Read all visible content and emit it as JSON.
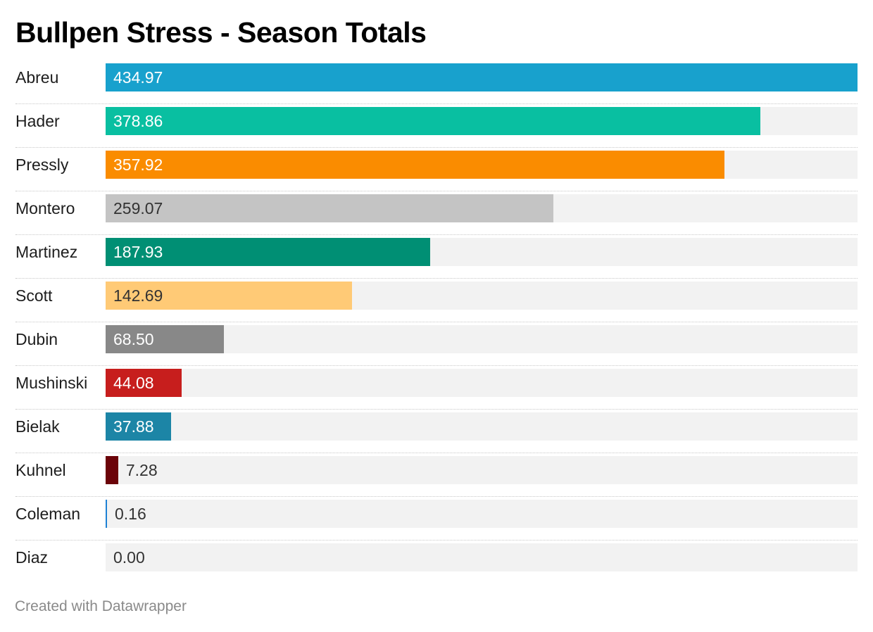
{
  "chart_data": {
    "type": "bar",
    "orientation": "horizontal",
    "title": "Bullpen Stress - Season Totals",
    "categories": [
      "Abreu",
      "Hader",
      "Pressly",
      "Montero",
      "Martinez",
      "Scott",
      "Dubin",
      "Mushinski",
      "Bielak",
      "Kuhnel",
      "Coleman",
      "Diaz"
    ],
    "values": [
      434.97,
      378.86,
      357.92,
      259.07,
      187.93,
      142.69,
      68.5,
      44.08,
      37.88,
      7.28,
      0.16,
      0.0
    ],
    "value_labels": [
      "434.97",
      "378.86",
      "357.92",
      "259.07",
      "187.93",
      "142.69",
      "68.50",
      "44.08",
      "37.88",
      "7.28",
      "0.16",
      "0.00"
    ],
    "colors": [
      "#18a1cd",
      "#09bfa1",
      "#fa8c00",
      "#c4c4c4",
      "#008f74",
      "#ffca76",
      "#888888",
      "#c71e1d",
      "#1c85a6",
      "#6b0309",
      "#1d81d4",
      "#cccccc"
    ],
    "label_colors": [
      "#ffffff",
      "#ffffff",
      "#ffffff",
      "#333333",
      "#ffffff",
      "#333333",
      "#ffffff",
      "#ffffff",
      "#ffffff",
      "#333333",
      "#333333",
      "#333333"
    ],
    "xlim": [
      0,
      434.97
    ],
    "grid": false,
    "legend": "none"
  },
  "footer": {
    "credit": "Created with Datawrapper"
  }
}
